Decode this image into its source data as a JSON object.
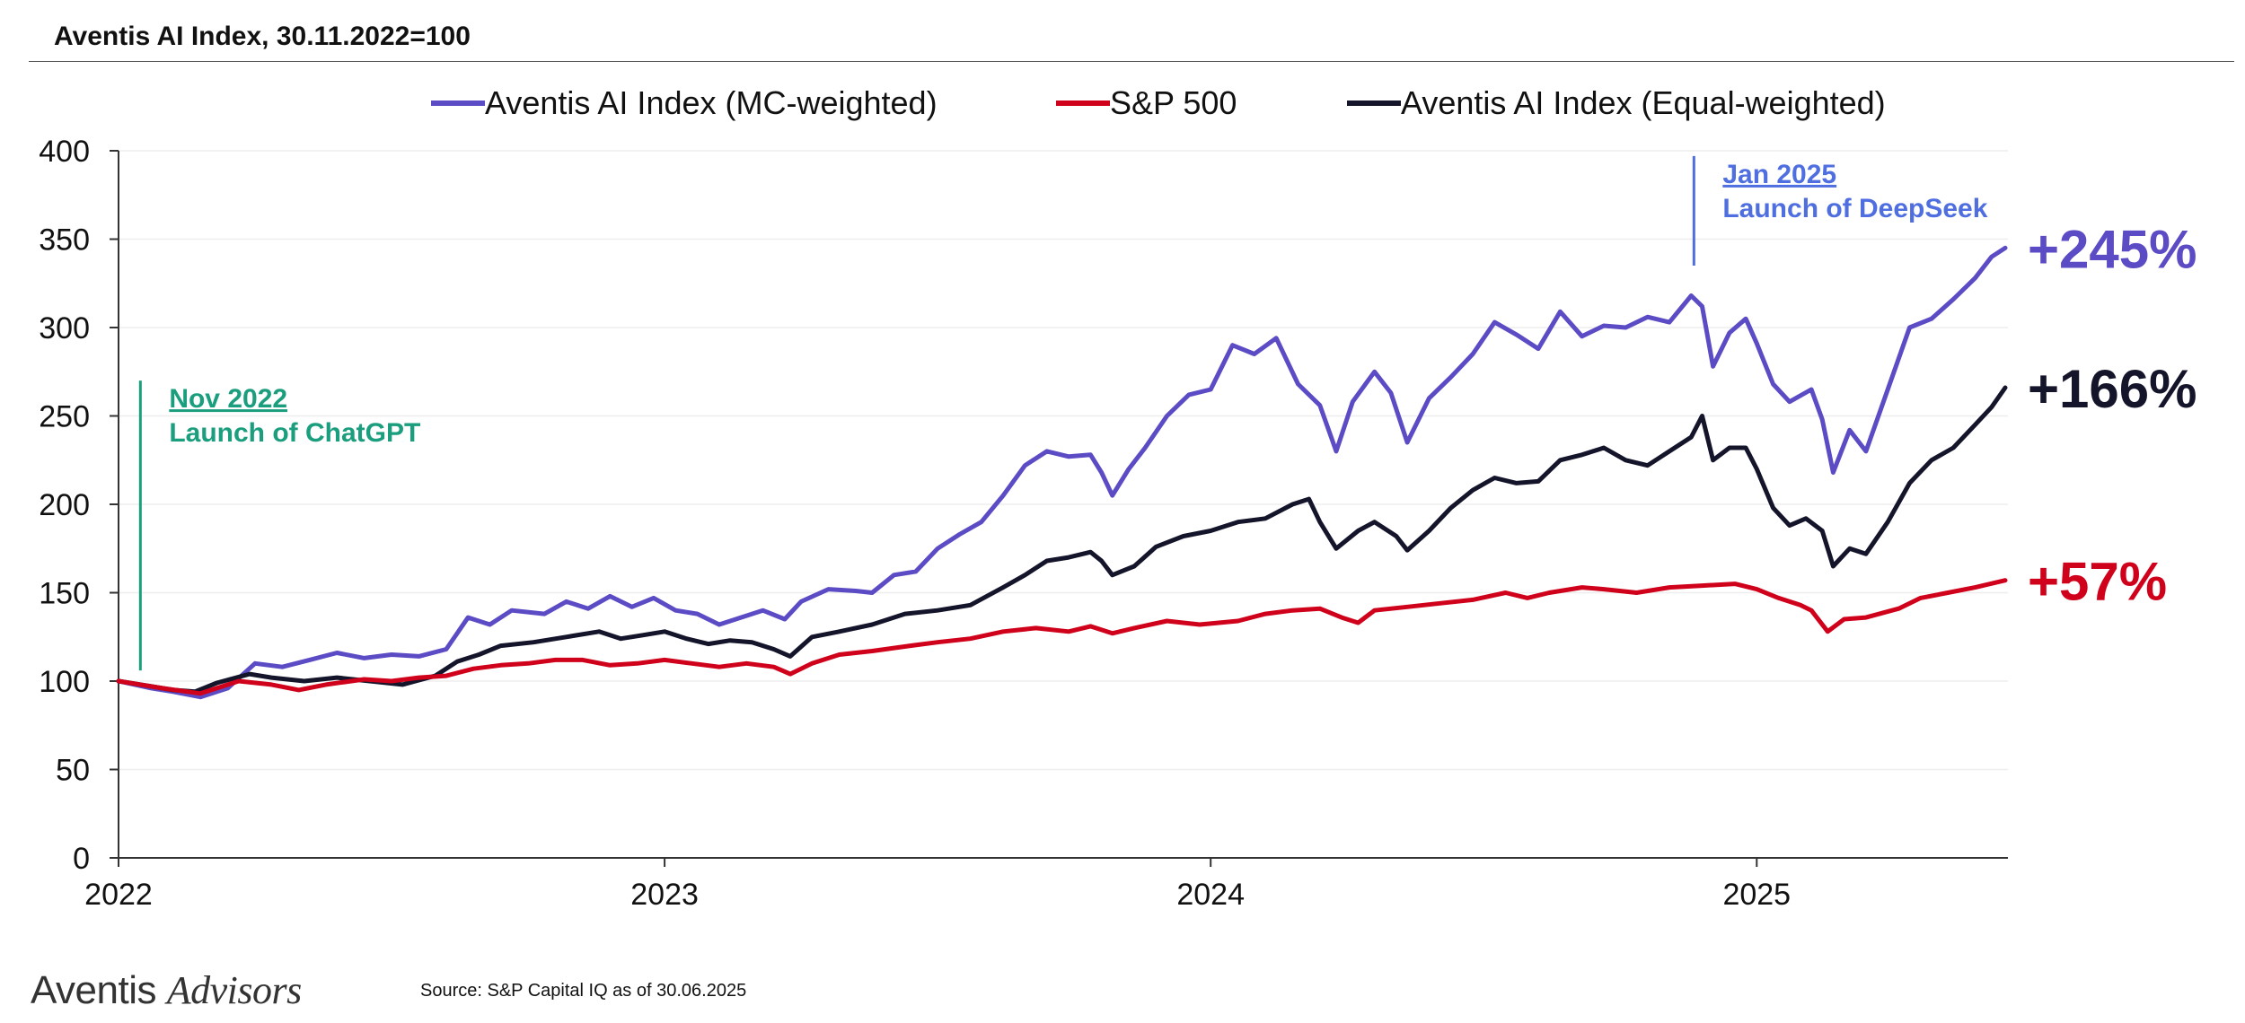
{
  "title": "Aventis AI Index, 30.11.2022=100",
  "branding": {
    "logo_part1": "Aventis",
    "logo_part2": "Advisors"
  },
  "source": "Source: S&P Capital IQ as of 30.06.2025",
  "colors": {
    "mc": "#5b4bc4",
    "sp": "#d0021b",
    "ew": "#14142b",
    "chatgpt": "#1a9e7e",
    "deepseek": "#4f6fe0",
    "grid": "#eeeeee",
    "axis": "#333333"
  },
  "chart_data": {
    "type": "line",
    "title": "Aventis AI Index, 30.11.2022=100",
    "xlabel": "",
    "ylabel": "",
    "xlim": [
      2022.0,
      2025.46
    ],
    "ylim": [
      0,
      400
    ],
    "yticks": [
      0,
      50,
      100,
      150,
      200,
      250,
      300,
      350,
      400
    ],
    "xticks": [
      {
        "value": 2022.0,
        "label": "2022"
      },
      {
        "value": 2023.0,
        "label": "2023"
      },
      {
        "value": 2024.0,
        "label": "2024"
      },
      {
        "value": 2025.0,
        "label": "2025"
      }
    ],
    "grid": true,
    "legend_position": "top",
    "series": [
      {
        "name": "Aventis AI Index (MC-weighted)",
        "key": "mc",
        "end_label": "+245%",
        "points": [
          [
            2022.0,
            100
          ],
          [
            2022.06,
            96
          ],
          [
            2022.1,
            94
          ],
          [
            2022.15,
            91
          ],
          [
            2022.2,
            96
          ],
          [
            2022.25,
            110
          ],
          [
            2022.3,
            108
          ],
          [
            2022.35,
            112
          ],
          [
            2022.4,
            116
          ],
          [
            2022.45,
            113
          ],
          [
            2022.5,
            115
          ],
          [
            2022.55,
            114
          ],
          [
            2022.6,
            118
          ],
          [
            2022.64,
            136
          ],
          [
            2022.68,
            132
          ],
          [
            2022.72,
            140
          ],
          [
            2022.78,
            138
          ],
          [
            2022.82,
            145
          ],
          [
            2022.86,
            141
          ],
          [
            2022.9,
            148
          ],
          [
            2022.94,
            142
          ],
          [
            2022.98,
            147
          ],
          [
            2023.02,
            140
          ],
          [
            2023.06,
            138
          ],
          [
            2023.1,
            132
          ],
          [
            2023.14,
            136
          ],
          [
            2023.18,
            140
          ],
          [
            2023.22,
            135
          ],
          [
            2023.25,
            145
          ],
          [
            2023.3,
            152
          ],
          [
            2023.35,
            151
          ],
          [
            2023.38,
            150
          ],
          [
            2023.42,
            160
          ],
          [
            2023.46,
            162
          ],
          [
            2023.5,
            175
          ],
          [
            2023.54,
            183
          ],
          [
            2023.58,
            190
          ],
          [
            2023.62,
            205
          ],
          [
            2023.66,
            222
          ],
          [
            2023.7,
            230
          ],
          [
            2023.74,
            227
          ],
          [
            2023.78,
            228
          ],
          [
            2023.8,
            218
          ],
          [
            2023.82,
            205
          ],
          [
            2023.85,
            220
          ],
          [
            2023.88,
            232
          ],
          [
            2023.92,
            250
          ],
          [
            2023.96,
            262
          ],
          [
            2024.0,
            265
          ],
          [
            2024.04,
            290
          ],
          [
            2024.08,
            285
          ],
          [
            2024.12,
            294
          ],
          [
            2024.16,
            268
          ],
          [
            2024.2,
            256
          ],
          [
            2024.23,
            230
          ],
          [
            2024.26,
            258
          ],
          [
            2024.3,
            275
          ],
          [
            2024.33,
            263
          ],
          [
            2024.36,
            235
          ],
          [
            2024.4,
            260
          ],
          [
            2024.44,
            272
          ],
          [
            2024.48,
            285
          ],
          [
            2024.52,
            303
          ],
          [
            2024.56,
            296
          ],
          [
            2024.6,
            288
          ],
          [
            2024.64,
            309
          ],
          [
            2024.68,
            295
          ],
          [
            2024.72,
            301
          ],
          [
            2024.76,
            300
          ],
          [
            2024.8,
            306
          ],
          [
            2024.84,
            303
          ],
          [
            2024.88,
            318
          ],
          [
            2024.9,
            312
          ],
          [
            2024.92,
            278
          ],
          [
            2024.95,
            297
          ],
          [
            2024.98,
            305
          ],
          [
            2025.0,
            291
          ],
          [
            2025.03,
            268
          ],
          [
            2025.06,
            258
          ],
          [
            2025.1,
            265
          ],
          [
            2025.12,
            248
          ],
          [
            2025.14,
            218
          ],
          [
            2025.17,
            242
          ],
          [
            2025.2,
            230
          ],
          [
            2025.24,
            265
          ],
          [
            2025.28,
            300
          ],
          [
            2025.32,
            305
          ],
          [
            2025.36,
            316
          ],
          [
            2025.4,
            328
          ],
          [
            2025.43,
            340
          ],
          [
            2025.455,
            345
          ]
        ]
      },
      {
        "name": "S&P 500",
        "key": "sp",
        "end_label": "+57%",
        "points": [
          [
            2022.0,
            100
          ],
          [
            2022.08,
            96
          ],
          [
            2022.15,
            93
          ],
          [
            2022.22,
            100
          ],
          [
            2022.28,
            98
          ],
          [
            2022.33,
            95
          ],
          [
            2022.38,
            98
          ],
          [
            2022.45,
            101
          ],
          [
            2022.5,
            100
          ],
          [
            2022.55,
            102
          ],
          [
            2022.6,
            103
          ],
          [
            2022.65,
            107
          ],
          [
            2022.7,
            109
          ],
          [
            2022.75,
            110
          ],
          [
            2022.8,
            112
          ],
          [
            2022.85,
            112
          ],
          [
            2022.9,
            109
          ],
          [
            2022.95,
            110
          ],
          [
            2023.0,
            112
          ],
          [
            2023.05,
            110
          ],
          [
            2023.1,
            108
          ],
          [
            2023.15,
            110
          ],
          [
            2023.2,
            108
          ],
          [
            2023.23,
            104
          ],
          [
            2023.27,
            110
          ],
          [
            2023.32,
            115
          ],
          [
            2023.38,
            117
          ],
          [
            2023.45,
            120
          ],
          [
            2023.5,
            122
          ],
          [
            2023.56,
            124
          ],
          [
            2023.62,
            128
          ],
          [
            2023.68,
            130
          ],
          [
            2023.74,
            128
          ],
          [
            2023.78,
            131
          ],
          [
            2023.82,
            127
          ],
          [
            2023.86,
            130
          ],
          [
            2023.92,
            134
          ],
          [
            2023.98,
            132
          ],
          [
            2024.05,
            134
          ],
          [
            2024.1,
            138
          ],
          [
            2024.15,
            140
          ],
          [
            2024.2,
            141
          ],
          [
            2024.24,
            136
          ],
          [
            2024.27,
            133
          ],
          [
            2024.3,
            140
          ],
          [
            2024.36,
            142
          ],
          [
            2024.42,
            144
          ],
          [
            2024.48,
            146
          ],
          [
            2024.54,
            150
          ],
          [
            2024.58,
            147
          ],
          [
            2024.62,
            150
          ],
          [
            2024.68,
            153
          ],
          [
            2024.72,
            152
          ],
          [
            2024.78,
            150
          ],
          [
            2024.84,
            153
          ],
          [
            2024.9,
            154
          ],
          [
            2024.96,
            155
          ],
          [
            2025.0,
            152
          ],
          [
            2025.04,
            147
          ],
          [
            2025.08,
            143
          ],
          [
            2025.1,
            140
          ],
          [
            2025.13,
            128
          ],
          [
            2025.16,
            135
          ],
          [
            2025.2,
            136
          ],
          [
            2025.26,
            141
          ],
          [
            2025.3,
            147
          ],
          [
            2025.35,
            150
          ],
          [
            2025.4,
            153
          ],
          [
            2025.455,
            157
          ]
        ]
      },
      {
        "name": "Aventis AI Index (Equal-weighted)",
        "key": "ew",
        "end_label": "+166%",
        "points": [
          [
            2022.0,
            100
          ],
          [
            2022.06,
            97
          ],
          [
            2022.1,
            95
          ],
          [
            2022.14,
            94
          ],
          [
            2022.18,
            99
          ],
          [
            2022.24,
            104
          ],
          [
            2022.28,
            102
          ],
          [
            2022.34,
            100
          ],
          [
            2022.4,
            102
          ],
          [
            2022.46,
            100
          ],
          [
            2022.52,
            98
          ],
          [
            2022.58,
            103
          ],
          [
            2022.62,
            111
          ],
          [
            2022.66,
            115
          ],
          [
            2022.7,
            120
          ],
          [
            2022.76,
            122
          ],
          [
            2022.82,
            125
          ],
          [
            2022.88,
            128
          ],
          [
            2022.92,
            124
          ],
          [
            2022.96,
            126
          ],
          [
            2023.0,
            128
          ],
          [
            2023.04,
            124
          ],
          [
            2023.08,
            121
          ],
          [
            2023.12,
            123
          ],
          [
            2023.16,
            122
          ],
          [
            2023.2,
            118
          ],
          [
            2023.23,
            114
          ],
          [
            2023.27,
            125
          ],
          [
            2023.32,
            128
          ],
          [
            2023.38,
            132
          ],
          [
            2023.44,
            138
          ],
          [
            2023.5,
            140
          ],
          [
            2023.56,
            143
          ],
          [
            2023.62,
            153
          ],
          [
            2023.66,
            160
          ],
          [
            2023.7,
            168
          ],
          [
            2023.74,
            170
          ],
          [
            2023.78,
            173
          ],
          [
            2023.8,
            168
          ],
          [
            2023.82,
            160
          ],
          [
            2023.86,
            165
          ],
          [
            2023.9,
            176
          ],
          [
            2023.95,
            182
          ],
          [
            2024.0,
            185
          ],
          [
            2024.05,
            190
          ],
          [
            2024.1,
            192
          ],
          [
            2024.15,
            200
          ],
          [
            2024.18,
            203
          ],
          [
            2024.2,
            190
          ],
          [
            2024.23,
            175
          ],
          [
            2024.27,
            185
          ],
          [
            2024.3,
            190
          ],
          [
            2024.34,
            182
          ],
          [
            2024.36,
            174
          ],
          [
            2024.4,
            185
          ],
          [
            2024.44,
            198
          ],
          [
            2024.48,
            208
          ],
          [
            2024.52,
            215
          ],
          [
            2024.56,
            212
          ],
          [
            2024.6,
            213
          ],
          [
            2024.64,
            225
          ],
          [
            2024.68,
            228
          ],
          [
            2024.72,
            232
          ],
          [
            2024.76,
            225
          ],
          [
            2024.8,
            222
          ],
          [
            2024.84,
            230
          ],
          [
            2024.88,
            238
          ],
          [
            2024.9,
            250
          ],
          [
            2024.92,
            225
          ],
          [
            2024.95,
            232
          ],
          [
            2024.98,
            232
          ],
          [
            2025.0,
            220
          ],
          [
            2025.03,
            198
          ],
          [
            2025.06,
            188
          ],
          [
            2025.09,
            192
          ],
          [
            2025.12,
            185
          ],
          [
            2025.14,
            165
          ],
          [
            2025.17,
            175
          ],
          [
            2025.2,
            172
          ],
          [
            2025.24,
            190
          ],
          [
            2025.28,
            212
          ],
          [
            2025.32,
            225
          ],
          [
            2025.36,
            232
          ],
          [
            2025.4,
            245
          ],
          [
            2025.43,
            255
          ],
          [
            2025.455,
            266
          ]
        ]
      }
    ],
    "annotations": [
      {
        "key": "chatgpt",
        "date_label": "Nov 2022",
        "text": "Launch of ChatGPT",
        "x": 2022.04,
        "y_from": 106,
        "y_to": 270
      },
      {
        "key": "deepseek",
        "date_label": "Jan 2025",
        "text": "Launch of DeepSeek",
        "x": 2024.885,
        "y_from": 335,
        "y_to": 397
      }
    ]
  }
}
